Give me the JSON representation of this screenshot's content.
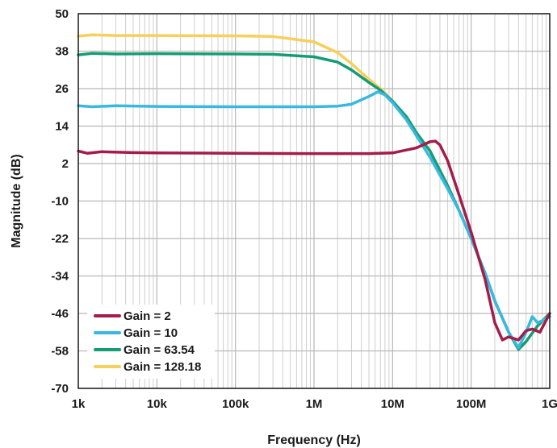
{
  "chart_data": {
    "type": "line",
    "title": "",
    "xlabel": "Frequency (Hz)",
    "ylabel": "Magnitude (dB)",
    "xscale": "log",
    "xlim": [
      1000,
      1000000000
    ],
    "ylim": [
      -70,
      50
    ],
    "x_tick_values": [
      1000,
      10000,
      100000,
      1000000,
      10000000,
      100000000,
      1000000000
    ],
    "x_tick_labels": [
      "1k",
      "10k",
      "100k",
      "1M",
      "10M",
      "100M",
      "1G"
    ],
    "y_ticks": [
      50,
      38,
      26,
      14,
      2,
      -10,
      -22,
      -34,
      -46,
      -58,
      -70
    ],
    "grid": true,
    "legend_position": "bottom-left",
    "series": [
      {
        "name": "Gain = 128.18",
        "color": "#f7cf5a",
        "points": [
          [
            1000,
            42.8
          ],
          [
            1500,
            43.2
          ],
          [
            3000,
            43.0
          ],
          [
            10000,
            43.0
          ],
          [
            100000,
            42.9
          ],
          [
            300000,
            42.7
          ],
          [
            1000000,
            41.0
          ],
          [
            2000000,
            37.5
          ],
          [
            3000000,
            34.0
          ],
          [
            5000000,
            29.0
          ],
          [
            7000000,
            26.0
          ],
          [
            10000000,
            22.0
          ],
          [
            15000000,
            17.0
          ],
          [
            20000000,
            12.0
          ],
          [
            30000000,
            6.0
          ],
          [
            50000000,
            -5.0
          ],
          [
            70000000,
            -13.0
          ],
          [
            100000000,
            -22.0
          ],
          [
            150000000,
            -33.0
          ],
          [
            200000000,
            -42.0
          ],
          [
            300000000,
            -52.0
          ],
          [
            400000000,
            -57.5
          ],
          [
            500000000,
            -55.0
          ],
          [
            700000000,
            -50.0
          ],
          [
            1000000000,
            -46.0
          ]
        ]
      },
      {
        "name": "Gain = 63.54",
        "color": "#159c77",
        "points": [
          [
            1000,
            36.8
          ],
          [
            1500,
            37.3
          ],
          [
            3000,
            37.1
          ],
          [
            10000,
            37.2
          ],
          [
            100000,
            37.1
          ],
          [
            300000,
            37.0
          ],
          [
            1000000,
            36.2
          ],
          [
            2000000,
            34.5
          ],
          [
            3000000,
            32.0
          ],
          [
            5000000,
            28.0
          ],
          [
            7000000,
            25.5
          ],
          [
            10000000,
            22.0
          ],
          [
            15000000,
            17.0
          ],
          [
            20000000,
            12.0
          ],
          [
            30000000,
            6.0
          ],
          [
            50000000,
            -5.0
          ],
          [
            70000000,
            -13.0
          ],
          [
            100000000,
            -22.0
          ],
          [
            150000000,
            -33.0
          ],
          [
            200000000,
            -42.0
          ],
          [
            300000000,
            -52.0
          ],
          [
            400000000,
            -57.5
          ],
          [
            500000000,
            -55.0
          ],
          [
            700000000,
            -50.0
          ],
          [
            1000000000,
            -46.0
          ]
        ]
      },
      {
        "name": "Gain = 10",
        "color": "#39b8e0",
        "points": [
          [
            1000,
            20.5
          ],
          [
            1500,
            20.2
          ],
          [
            3000,
            20.5
          ],
          [
            10000,
            20.3
          ],
          [
            100000,
            20.2
          ],
          [
            1000000,
            20.2
          ],
          [
            2000000,
            20.4
          ],
          [
            3000000,
            21.0
          ],
          [
            5000000,
            23.5
          ],
          [
            6500000,
            25.0
          ],
          [
            8000000,
            24.0
          ],
          [
            10000000,
            21.5
          ],
          [
            15000000,
            16.0
          ],
          [
            20000000,
            11.0
          ],
          [
            30000000,
            4.0
          ],
          [
            50000000,
            -6.0
          ],
          [
            70000000,
            -13.0
          ],
          [
            100000000,
            -22.0
          ],
          [
            150000000,
            -33.0
          ],
          [
            200000000,
            -42.0
          ],
          [
            300000000,
            -52.0
          ],
          [
            400000000,
            -57.0
          ],
          [
            500000000,
            -52.0
          ],
          [
            600000000,
            -47.0
          ],
          [
            700000000,
            -49.0
          ],
          [
            850000000,
            -48.0
          ],
          [
            1000000000,
            -47.0
          ]
        ]
      },
      {
        "name": "Gain = 2",
        "color": "#a41d4a",
        "points": [
          [
            1000,
            6.0
          ],
          [
            1300,
            5.3
          ],
          [
            2000,
            5.8
          ],
          [
            5000,
            5.5
          ],
          [
            10000,
            5.4
          ],
          [
            100000,
            5.3
          ],
          [
            1000000,
            5.2
          ],
          [
            5000000,
            5.2
          ],
          [
            10000000,
            5.4
          ],
          [
            20000000,
            7.0
          ],
          [
            30000000,
            9.0
          ],
          [
            35000000,
            9.2
          ],
          [
            40000000,
            8.0
          ],
          [
            50000000,
            3.0
          ],
          [
            70000000,
            -8.0
          ],
          [
            100000000,
            -20.0
          ],
          [
            150000000,
            -35.0
          ],
          [
            200000000,
            -49.0
          ],
          [
            250000000,
            -54.5
          ],
          [
            300000000,
            -53.5
          ],
          [
            400000000,
            -54.5
          ],
          [
            500000000,
            -51.5
          ],
          [
            600000000,
            -51.0
          ],
          [
            750000000,
            -52.0
          ],
          [
            1000000000,
            -46.0
          ]
        ]
      }
    ]
  }
}
